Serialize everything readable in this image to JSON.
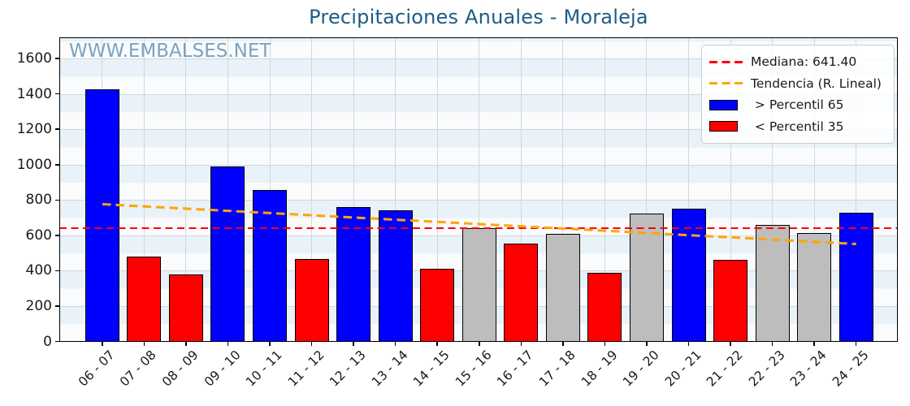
{
  "title": "Precipitaciones Anuales - Moraleja",
  "watermark": "WWW.EMBALSES.NET",
  "colors": {
    "title": "#1d5c86",
    "watermark": "#7aa3c2",
    "bar_blue": "#0000ff",
    "bar_red": "#ff0000",
    "bar_gray": "#bdbdbd",
    "bar_edge": "#000000",
    "median_line": "#ff0000",
    "trend_line": "#ffa500",
    "stripe_light": "#fafbfc",
    "stripe_blue": "#e8f2f8",
    "gridline": "#d2d7da",
    "tick_label": "#1a1a1a",
    "legend_bg": "rgba(255,255,255,0.82)",
    "legend_border": "#cccccc",
    "legend_text": "#1a1a1a"
  },
  "legend": {
    "items": [
      {
        "id": "median",
        "type": "dash",
        "color": "#ff0000",
        "label": "Mediana: 641.40"
      },
      {
        "id": "trend",
        "type": "dash",
        "color": "#ffa500",
        "label": "Tendencia (R. Lineal)"
      },
      {
        "id": "p65",
        "type": "rect",
        "color": "#0000ff",
        "label": " > Percentil 65"
      },
      {
        "id": "p35",
        "type": "rect",
        "color": "#ff0000",
        "label": " < Percentil 35"
      }
    ]
  },
  "chart_data": {
    "type": "bar",
    "title": "Precipitaciones Anuales - Moraleja",
    "categories": [
      "06 - 07",
      "07 - 08",
      "08 - 09",
      "09 - 10",
      "10 - 11",
      "11 - 12",
      "12 - 13",
      "13 - 14",
      "14 - 15",
      "15 - 16",
      "16 - 17",
      "17 - 18",
      "18 - 19",
      "19 - 20",
      "20 - 21",
      "21 - 22",
      "22 - 23",
      "23 - 24",
      "24 - 25"
    ],
    "values": [
      1425,
      480,
      380,
      990,
      855,
      465,
      760,
      740,
      410,
      641.4,
      555,
      610,
      390,
      725,
      750,
      460,
      660,
      615,
      730
    ],
    "bar_color_keys": [
      "blue",
      "red",
      "red",
      "blue",
      "blue",
      "red",
      "blue",
      "blue",
      "red",
      "gray",
      "red",
      "gray",
      "red",
      "gray",
      "blue",
      "red",
      "gray",
      "gray",
      "blue"
    ],
    "median": 641.4,
    "trend": {
      "start": 778,
      "end": 553
    },
    "ylim": [
      0,
      1720
    ],
    "yticks": [
      0,
      200,
      400,
      600,
      800,
      1000,
      1200,
      1400,
      1600
    ],
    "grid": true,
    "background": "striped-horizontal-100",
    "legend_position": "upper right",
    "xlabel_rotation_deg": 45
  }
}
